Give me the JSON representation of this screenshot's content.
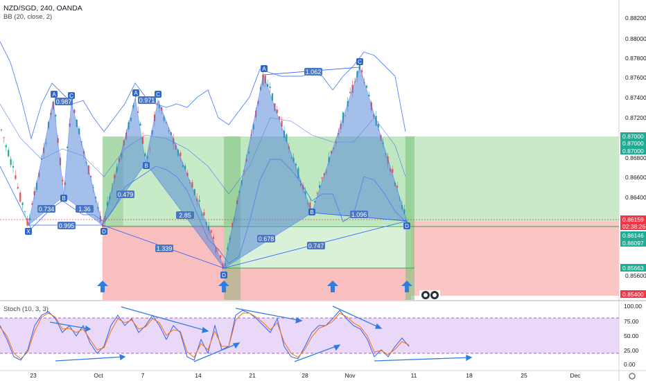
{
  "header": {
    "symbol_line": "NZD/SGD, 240, OANDA",
    "indicator_bb": "BB (20, close, 2)",
    "indicator_stoch": "Stoch (10, 3, 3)"
  },
  "price_axis": {
    "ticks": [
      "0.88200",
      "0.88000",
      "0.87800",
      "0.87600",
      "0.87400",
      "0.87200",
      "0.86800",
      "0.86600",
      "0.86400",
      "0.85600"
    ],
    "tags": [
      {
        "text": "0.87000",
        "color": "#22ab94",
        "text_color": "#ffffff"
      },
      {
        "text": "0.87000",
        "color": "#22ab94",
        "text_color": "#ffffff"
      },
      {
        "text": "0.87000",
        "color": "#22ab94",
        "text_color": "#ffffff"
      },
      {
        "text": "0.86159",
        "color": "#f23645",
        "text_color": "#ffffff"
      },
      {
        "text": "02:38:26",
        "color": "#f23645",
        "text_color": "#ffffff"
      },
      {
        "text": "0.86146",
        "color": "#22ab94",
        "text_color": "#ffffff"
      },
      {
        "text": "0.86097",
        "color": "#22ab94",
        "text_color": "#ffffff"
      },
      {
        "text": "0.85663",
        "color": "#22ab94",
        "text_color": "#ffffff"
      },
      {
        "text": "0.85400",
        "color": "#f23645",
        "text_color": "#ffffff"
      }
    ]
  },
  "stoch_axis": {
    "ticks": [
      "100.00",
      "75.00",
      "50.00",
      "25.00",
      "0.00"
    ]
  },
  "time_axis": {
    "ticks": [
      "23",
      "Oct",
      "7",
      "14",
      "21",
      "28",
      "Nov",
      "11",
      "18",
      "25",
      "Dec"
    ]
  },
  "patterns": {
    "point_labels": [
      "X",
      "A",
      "B",
      "C",
      "D",
      "A",
      "B",
      "C",
      "D",
      "A",
      "B",
      "C",
      "D"
    ],
    "ratios": [
      "0.987",
      "0.734",
      "1.36",
      "0.995",
      "0.971",
      "0.479",
      "2.85",
      "1.339",
      "1.062",
      "0.678",
      "0.747",
      "1.096"
    ]
  },
  "colors": {
    "pattern_fill": "#5b8dd9",
    "profit_zone": "#b9e5b9",
    "loss_zone": "#f8b4b4",
    "arrow": "#2f7de1",
    "stoch_band": "#e1c8f5",
    "stoch_k": "#2962ff",
    "stoch_d": "#ff6d00"
  }
}
